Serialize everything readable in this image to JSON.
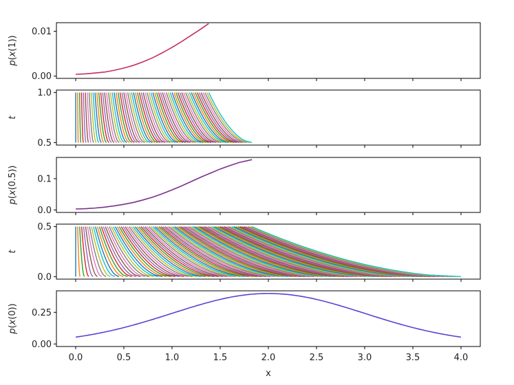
{
  "chart_data": [
    {
      "type": "line",
      "ylabel": "p(x(1))",
      "xlim": [
        -0.2,
        4.2
      ],
      "ylim": [
        -0.0005,
        0.0119
      ],
      "yticks": [
        0.0,
        0.01
      ],
      "ytick_labels": [
        "0.00",
        "0.01"
      ],
      "series": [
        {
          "color": "#c0305a",
          "x": [
            0.0,
            0.1,
            0.2,
            0.3,
            0.4,
            0.5,
            0.6,
            0.7,
            0.8,
            0.9,
            1.0,
            1.1,
            1.2,
            1.3,
            1.38
          ],
          "y": [
            0.0004,
            0.0005,
            0.0007,
            0.0009,
            0.0013,
            0.0018,
            0.0024,
            0.0032,
            0.0041,
            0.0052,
            0.0064,
            0.0077,
            0.0091,
            0.0105,
            0.0117
          ]
        }
      ]
    },
    {
      "type": "line",
      "ylabel": "t",
      "xlim": [
        -0.2,
        4.2
      ],
      "ylim": [
        0.475,
        1.025
      ],
      "yticks": [
        0.5,
        1.0
      ],
      "ytick_labels": [
        "0.5",
        "1.0"
      ],
      "trajectories": {
        "t_range": [
          0.5,
          1.0
        ],
        "start_x_range": [
          0.0,
          1.83
        ],
        "count": 70,
        "t0": 0.5,
        "t1": 1.0,
        "outer_boundary_color": "#17becf",
        "colors": [
          "#1f77b4",
          "#ff7f0e",
          "#2ca02c",
          "#d62728",
          "#9467bd",
          "#8c564b",
          "#e377c2",
          "#7f7f7f",
          "#bcbd22",
          "#17becf"
        ]
      }
    },
    {
      "type": "line",
      "ylabel": "p(x(0.5))",
      "xlim": [
        -0.2,
        4.2
      ],
      "ylim": [
        -0.008,
        0.168
      ],
      "yticks": [
        0.0,
        0.1
      ],
      "ytick_labels": [
        "0.0",
        "0.1"
      ],
      "series": [
        {
          "color": "#7b2d8e",
          "x": [
            0.0,
            0.1,
            0.2,
            0.3,
            0.4,
            0.5,
            0.6,
            0.7,
            0.8,
            0.9,
            1.0,
            1.1,
            1.2,
            1.3,
            1.4,
            1.5,
            1.6,
            1.7,
            1.83
          ],
          "y": [
            0.003,
            0.004,
            0.006,
            0.009,
            0.013,
            0.018,
            0.024,
            0.032,
            0.041,
            0.052,
            0.064,
            0.077,
            0.091,
            0.105,
            0.118,
            0.131,
            0.142,
            0.152,
            0.161
          ]
        }
      ]
    },
    {
      "type": "line",
      "ylabel": "t",
      "xlim": [
        -0.2,
        4.2
      ],
      "ylim": [
        -0.025,
        0.525
      ],
      "yticks": [
        0.0,
        0.5
      ],
      "ytick_labels": [
        "0.0",
        "0.5"
      ],
      "trajectories": {
        "t_range": [
          0.0,
          0.5
        ],
        "start_x_range": [
          0.0,
          4.0
        ],
        "count": 90,
        "t0": 0.0,
        "t1": 0.5,
        "outer_boundary_color": "#17becf",
        "colors": [
          "#1f77b4",
          "#ff7f0e",
          "#2ca02c",
          "#d62728",
          "#9467bd",
          "#8c564b",
          "#e377c2",
          "#7f7f7f",
          "#bcbd22",
          "#17becf"
        ]
      }
    },
    {
      "type": "line",
      "ylabel": "p(x(0))",
      "xlabel": "x",
      "xlim": [
        -0.2,
        4.2
      ],
      "ylim": [
        -0.02,
        0.42
      ],
      "yticks": [
        0.0,
        0.25
      ],
      "ytick_labels": [
        "0.00",
        "0.25"
      ],
      "xticks": [
        0.0,
        0.5,
        1.0,
        1.5,
        2.0,
        2.5,
        3.0,
        3.5,
        4.0
      ],
      "xtick_labels": [
        "0.0",
        "0.5",
        "1.0",
        "1.5",
        "2.0",
        "2.5",
        "3.0",
        "3.5",
        "4.0"
      ],
      "series": [
        {
          "color": "#5b3fd1",
          "gaussian": {
            "mean": 2.0,
            "std": 1.0
          },
          "x_range": [
            0.0,
            4.0
          ]
        }
      ]
    }
  ]
}
